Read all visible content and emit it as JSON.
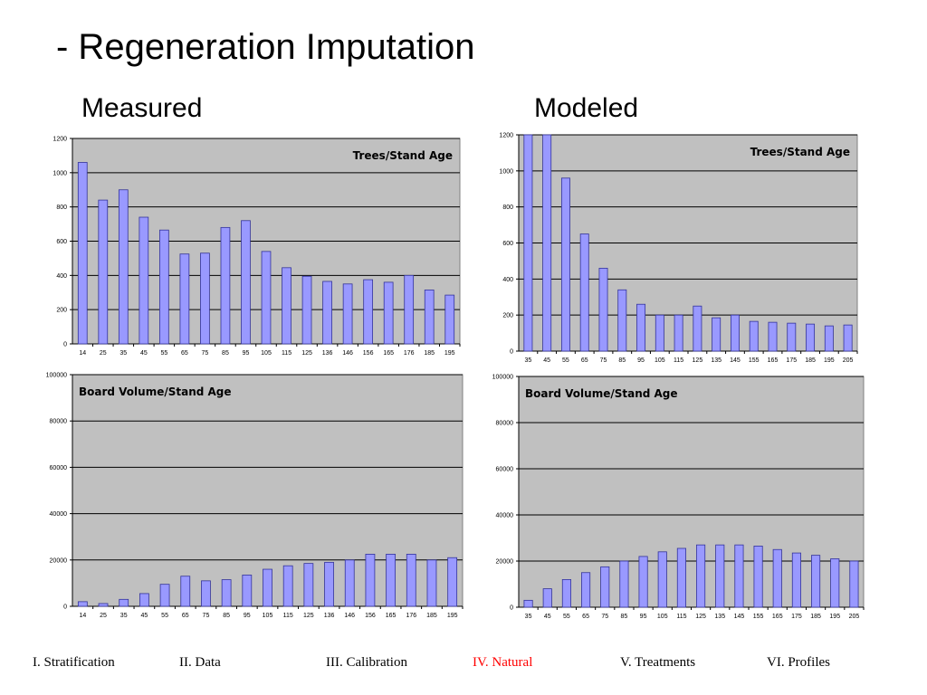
{
  "page": {
    "title": "- Regeneration Imputation",
    "measured_label": "Measured",
    "modeled_label": "Modeled"
  },
  "colors": {
    "plot_bg": "#c0c0c0",
    "bar_fill": "#9999ff",
    "bar_stroke": "#333399",
    "grid": "#000000",
    "nav_active": "#ff0000",
    "nav_default": "#000000"
  },
  "chart_data": [
    {
      "id": "measured-trees",
      "type": "bar",
      "title": "Trees/Stand Age",
      "legend_position": "top-right",
      "categories": [
        "14",
        "25",
        "35",
        "45",
        "55",
        "65",
        "75",
        "85",
        "95",
        "105",
        "115",
        "125",
        "136",
        "146",
        "156",
        "165",
        "176",
        "185",
        "195"
      ],
      "values": [
        1060,
        840,
        900,
        740,
        665,
        525,
        530,
        680,
        720,
        540,
        445,
        395,
        365,
        350,
        375,
        360,
        400,
        315,
        285
      ],
      "ylim": [
        0,
        1200
      ],
      "yticks": [
        "0",
        "200",
        "400",
        "600",
        "800",
        "1000",
        "1200"
      ],
      "grid": true
    },
    {
      "id": "modeled-trees",
      "type": "bar",
      "title": "Trees/Stand Age",
      "legend_position": "top-right",
      "categories": [
        "35",
        "45",
        "55",
        "65",
        "75",
        "85",
        "95",
        "105",
        "115",
        "125",
        "135",
        "145",
        "155",
        "165",
        "175",
        "185",
        "195",
        "205"
      ],
      "values": [
        1200,
        1200,
        960,
        650,
        460,
        340,
        260,
        200,
        200,
        250,
        185,
        200,
        165,
        160,
        155,
        150,
        140,
        145
      ],
      "ylim": [
        0,
        1200
      ],
      "yticks": [
        "0",
        "200",
        "400",
        "600",
        "800",
        "1000",
        "1200"
      ],
      "grid": true
    },
    {
      "id": "measured-volume",
      "type": "bar",
      "title": "Board Volume/Stand Age",
      "legend_position": "top-left",
      "categories": [
        "14",
        "25",
        "35",
        "45",
        "55",
        "65",
        "75",
        "85",
        "95",
        "105",
        "115",
        "125",
        "136",
        "146",
        "156",
        "165",
        "176",
        "185",
        "195"
      ],
      "values": [
        2000,
        1200,
        3000,
        5500,
        9500,
        13000,
        11000,
        11500,
        13500,
        16000,
        17500,
        18500,
        19000,
        20000,
        22500,
        22500,
        22500,
        20000,
        21000
      ],
      "ylim": [
        0,
        100000
      ],
      "yticks": [
        "0",
        "20000",
        "40000",
        "60000",
        "80000",
        "100000"
      ],
      "grid": true
    },
    {
      "id": "modeled-volume",
      "type": "bar",
      "title": "Board Volume/Stand Age",
      "legend_position": "top-left",
      "categories": [
        "35",
        "45",
        "55",
        "65",
        "75",
        "85",
        "95",
        "105",
        "115",
        "125",
        "135",
        "145",
        "155",
        "165",
        "175",
        "185",
        "195",
        "205"
      ],
      "values": [
        3000,
        8000,
        12000,
        15000,
        17500,
        20000,
        22000,
        24000,
        25500,
        27000,
        27000,
        27000,
        26500,
        25000,
        23500,
        22500,
        21000,
        20000
      ],
      "ylim": [
        0,
        100000
      ],
      "yticks": [
        "0",
        "20000",
        "40000",
        "60000",
        "80000",
        "100000"
      ],
      "grid": true
    }
  ],
  "nav": {
    "items": [
      {
        "label": "I. Stratification",
        "active": false
      },
      {
        "label": "II. Data",
        "active": false
      },
      {
        "label": "III. Calibration",
        "active": false
      },
      {
        "label": "IV. Natural",
        "active": true
      },
      {
        "label": "V. Treatments",
        "active": false
      },
      {
        "label": "VI. Profiles",
        "active": false
      }
    ]
  }
}
